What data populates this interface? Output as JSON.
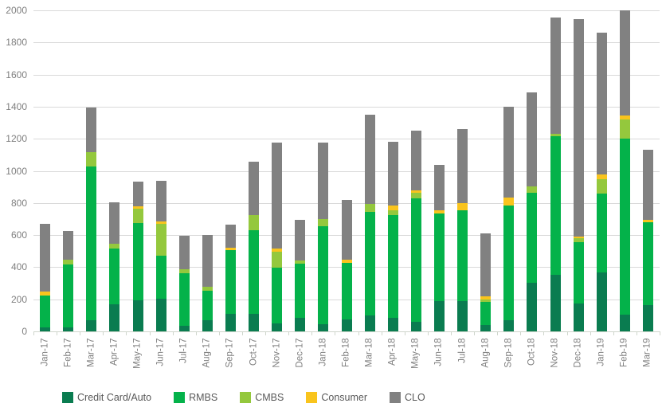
{
  "chart_data": {
    "type": "bar",
    "stacked": true,
    "title": "",
    "xlabel": "",
    "ylabel": "",
    "categories": [
      "Jan-17",
      "Feb-17",
      "Mar-17",
      "Apr-17",
      "May-17",
      "Jun-17",
      "Jul-17",
      "Aug-17",
      "Sep-17",
      "Oct-17",
      "Nov-17",
      "Dec-17",
      "Jan-18",
      "Feb-18",
      "Mar-18",
      "Apr-18",
      "May-18",
      "Jun-18",
      "Jul-18",
      "Aug-18",
      "Sep-18",
      "Oct-18",
      "Nov-18",
      "Dec-18",
      "Jan-19",
      "Feb-19",
      "Mar-19"
    ],
    "series": [
      {
        "name": "Credit Card/Auto",
        "color": "#0a7c50",
        "values": [
          25,
          25,
          70,
          170,
          195,
          205,
          35,
          70,
          110,
          110,
          50,
          85,
          45,
          75,
          100,
          85,
          60,
          190,
          190,
          40,
          70,
          305,
          350,
          175,
          365,
          105,
          165
        ]
      },
      {
        "name": "RMBS",
        "color": "#04b24a",
        "values": [
          200,
          390,
          955,
          345,
          480,
          265,
          325,
          185,
          395,
          520,
          345,
          335,
          610,
          350,
          645,
          640,
          770,
          545,
          565,
          145,
          715,
          560,
          865,
          380,
          495,
          1095,
          515
        ]
      },
      {
        "name": "CMBS",
        "color": "#94c83d",
        "values": [
          0,
          30,
          90,
          30,
          90,
          200,
          25,
          25,
          0,
          95,
          100,
          20,
          45,
          0,
          50,
          30,
          35,
          0,
          0,
          15,
          0,
          40,
          15,
          25,
          90,
          120,
          0
        ]
      },
      {
        "name": "Consumer",
        "color": "#f9c41d",
        "values": [
          25,
          0,
          0,
          0,
          15,
          15,
          0,
          0,
          15,
          0,
          20,
          0,
          0,
          20,
          0,
          30,
          15,
          20,
          45,
          20,
          50,
          0,
          0,
          10,
          30,
          25,
          15
        ]
      },
      {
        "name": "CLO",
        "color": "#818181",
        "values": [
          420,
          180,
          280,
          260,
          155,
          255,
          210,
          320,
          145,
          330,
          660,
          255,
          475,
          375,
          555,
          395,
          370,
          280,
          460,
          390,
          565,
          585,
          725,
          1355,
          880,
          655,
          435
        ]
      }
    ],
    "ylim": [
      0,
      2000
    ],
    "ytick_step": 200,
    "yticks": [
      "0",
      "200",
      "400",
      "600",
      "800",
      "1000",
      "1200",
      "1400",
      "1600",
      "1800",
      "2000"
    ],
    "grid": "horizontal",
    "legend_position": "bottom"
  },
  "colors": {
    "background": "#ffffff",
    "gridline": "#d9d9d9",
    "axis_label": "#7f7f7f",
    "legend_label": "#595959"
  }
}
